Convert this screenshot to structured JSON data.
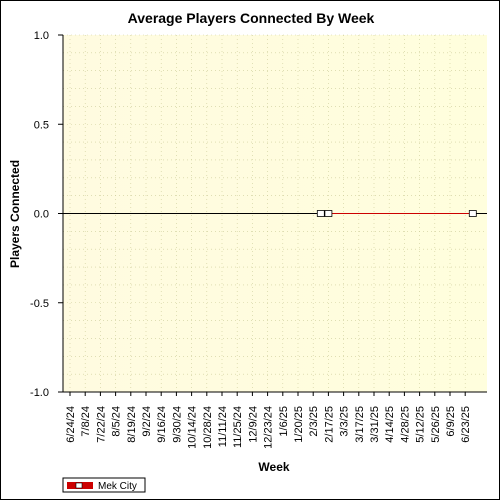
{
  "chart_data": {
    "type": "line",
    "title": "Average Players Connected By Week",
    "xlabel": "Week",
    "ylabel": "Players Connected",
    "ylim": [
      -1.0,
      1.0
    ],
    "y_ticks": [
      "1.0",
      "0.5",
      "0.0",
      "-0.5",
      "-1.0"
    ],
    "y_tick_values": [
      1.0,
      0.5,
      0.0,
      -0.5,
      -1.0
    ],
    "categories": [
      "6/24/24",
      "7/8/24",
      "7/22/24",
      "8/5/24",
      "8/19/24",
      "9/2/24",
      "9/16/24",
      "9/30/24",
      "10/14/24",
      "10/28/24",
      "11/11/24",
      "11/25/24",
      "12/9/24",
      "12/23/24",
      "1/6/25",
      "1/20/25",
      "2/3/25",
      "2/17/25",
      "3/3/25",
      "3/17/25",
      "3/31/25",
      "4/14/25",
      "4/28/25",
      "5/12/25",
      "5/26/25",
      "6/9/25",
      "6/23/25"
    ],
    "grid": true,
    "legend_position": "bottom-left",
    "series": [
      {
        "name": "Mek City",
        "color": "#cc0000",
        "points": [
          {
            "x": "2/10/25",
            "y": 0.0
          },
          {
            "x": "2/17/25",
            "y": 0.0
          },
          {
            "x": "6/30/25",
            "y": 0.0
          }
        ]
      }
    ],
    "background_gradient": [
      "#ffffdd",
      "#ffffcc"
    ]
  }
}
